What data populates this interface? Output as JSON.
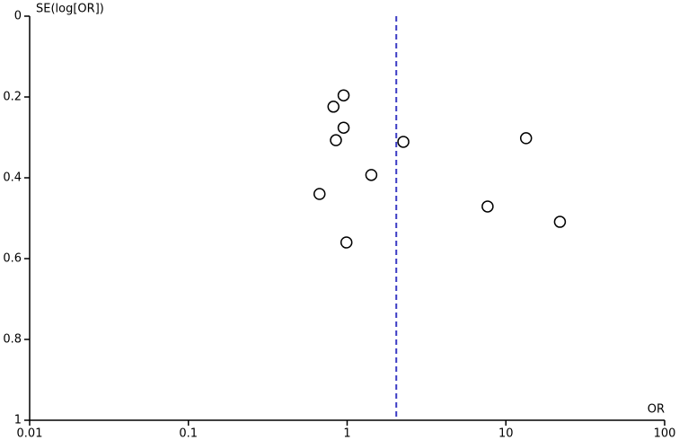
{
  "chart_data": {
    "type": "scatter",
    "x_label": "OR",
    "y_label": "SE(log[OR])",
    "x": [
      0.95,
      0.82,
      0.95,
      0.85,
      2.26,
      13.4,
      1.42,
      0.67,
      7.67,
      21.9,
      0.99
    ],
    "values": [
      0.196,
      0.224,
      0.276,
      0.307,
      0.311,
      0.302,
      0.393,
      0.44,
      0.471,
      0.509,
      0.56
    ],
    "color": "#000000",
    "xlim": [
      0.01,
      100
    ],
    "xticks": [
      0.01,
      0.1,
      1,
      10,
      100
    ],
    "x_log": true,
    "ylim": [
      0,
      1
    ],
    "yticks": [
      0,
      0.2,
      0.4,
      0.6,
      0.8,
      1
    ],
    "y_reversed": true,
    "reference_x": 2.04,
    "reference_color": "#3b3bc4"
  }
}
